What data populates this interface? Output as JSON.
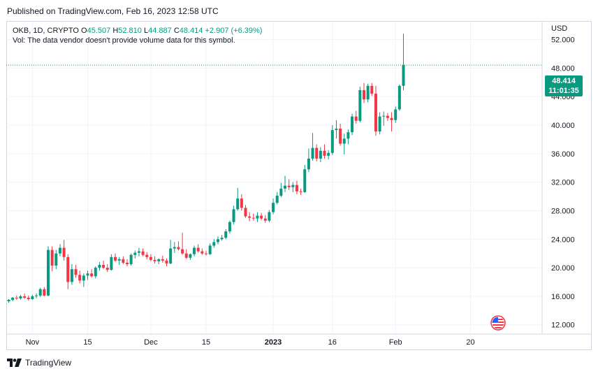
{
  "header": {
    "published": "Published on TradingView.com, Feb 16, 2023 12:58 UTC"
  },
  "legend": {
    "symbol": "OKB, 1D, CRYPTO",
    "o_label": "O",
    "open": "45.507",
    "h_label": "H",
    "high": "52.810",
    "l_label": "L",
    "low": "44.887",
    "c_label": "C",
    "close": "48.414",
    "change": "+2.907 (+6.39%)",
    "vol_text": "Vol: The data vendor doesn't provide volume data for this symbol."
  },
  "axis": {
    "currency": "USD"
  },
  "price_tag": {
    "price": "48.414",
    "countdown": "11:01:35"
  },
  "footer": {
    "brand": "TradingView"
  },
  "colors": {
    "up": "#089981",
    "down": "#f23645",
    "grid": "#f0f3fa",
    "text": "#131722"
  },
  "chart_data": {
    "type": "candlestick",
    "title": "OKB, 1D, CRYPTO",
    "ylabel": "USD",
    "ylim": [
      10.7,
      54.5
    ],
    "y_ticks": [
      "12.000",
      "16.000",
      "20.000",
      "24.000",
      "28.000",
      "32.000",
      "36.000",
      "40.000",
      "44.000",
      "48.000",
      "52.000"
    ],
    "x_ticks": [
      {
        "label": "Nov",
        "day": 6
      },
      {
        "label": "15",
        "day": 20
      },
      {
        "label": "Dec",
        "day": 36
      },
      {
        "label": "15",
        "day": 50
      },
      {
        "label": "2023",
        "day": 67
      },
      {
        "label": "16",
        "day": 82
      },
      {
        "label": "Feb",
        "day": 98
      },
      {
        "label": "20",
        "day": 117
      }
    ],
    "last_price": 48.414,
    "candles": [
      {
        "o": 15.3,
        "h": 15.6,
        "l": 15.1,
        "c": 15.5
      },
      {
        "o": 15.5,
        "h": 15.9,
        "l": 15.3,
        "c": 15.8
      },
      {
        "o": 15.8,
        "h": 16.1,
        "l": 15.5,
        "c": 15.7
      },
      {
        "o": 15.7,
        "h": 16.2,
        "l": 15.5,
        "c": 16.0
      },
      {
        "o": 16.0,
        "h": 16.4,
        "l": 15.6,
        "c": 15.8
      },
      {
        "o": 15.8,
        "h": 16.1,
        "l": 15.4,
        "c": 15.6
      },
      {
        "o": 15.6,
        "h": 16.2,
        "l": 15.5,
        "c": 16.0
      },
      {
        "o": 16.0,
        "h": 16.4,
        "l": 15.7,
        "c": 16.1
      },
      {
        "o": 16.1,
        "h": 17.2,
        "l": 15.9,
        "c": 17.0
      },
      {
        "o": 17.0,
        "h": 17.3,
        "l": 16.0,
        "c": 16.1
      },
      {
        "o": 16.1,
        "h": 23.0,
        "l": 16.0,
        "c": 22.5
      },
      {
        "o": 22.5,
        "h": 23.0,
        "l": 19.5,
        "c": 20.3
      },
      {
        "o": 20.3,
        "h": 22.5,
        "l": 19.8,
        "c": 22.0
      },
      {
        "o": 22.0,
        "h": 23.3,
        "l": 21.6,
        "c": 22.8
      },
      {
        "o": 22.8,
        "h": 23.9,
        "l": 21.0,
        "c": 21.5
      },
      {
        "o": 21.5,
        "h": 21.9,
        "l": 17.0,
        "c": 18.0
      },
      {
        "o": 18.0,
        "h": 20.5,
        "l": 17.6,
        "c": 19.8
      },
      {
        "o": 19.8,
        "h": 20.4,
        "l": 18.6,
        "c": 19.0
      },
      {
        "o": 19.0,
        "h": 19.6,
        "l": 17.8,
        "c": 18.2
      },
      {
        "o": 18.2,
        "h": 19.2,
        "l": 17.3,
        "c": 18.9
      },
      {
        "o": 18.9,
        "h": 19.6,
        "l": 18.3,
        "c": 19.2
      },
      {
        "o": 19.2,
        "h": 19.8,
        "l": 18.6,
        "c": 18.8
      },
      {
        "o": 18.8,
        "h": 20.2,
        "l": 18.5,
        "c": 20.0
      },
      {
        "o": 20.0,
        "h": 20.8,
        "l": 19.6,
        "c": 20.4
      },
      {
        "o": 20.4,
        "h": 21.0,
        "l": 19.8,
        "c": 20.0
      },
      {
        "o": 20.0,
        "h": 20.5,
        "l": 19.4,
        "c": 19.7
      },
      {
        "o": 19.7,
        "h": 21.9,
        "l": 19.6,
        "c": 21.5
      },
      {
        "o": 21.5,
        "h": 22.0,
        "l": 20.8,
        "c": 21.0
      },
      {
        "o": 21.0,
        "h": 21.5,
        "l": 20.4,
        "c": 21.2
      },
      {
        "o": 21.2,
        "h": 21.6,
        "l": 20.5,
        "c": 20.7
      },
      {
        "o": 20.7,
        "h": 21.2,
        "l": 20.2,
        "c": 20.5
      },
      {
        "o": 20.5,
        "h": 22.0,
        "l": 20.3,
        "c": 21.8
      },
      {
        "o": 21.8,
        "h": 22.4,
        "l": 21.3,
        "c": 22.1
      },
      {
        "o": 22.1,
        "h": 22.8,
        "l": 21.6,
        "c": 22.3
      },
      {
        "o": 22.3,
        "h": 22.7,
        "l": 21.6,
        "c": 21.8
      },
      {
        "o": 21.8,
        "h": 22.2,
        "l": 21.2,
        "c": 21.5
      },
      {
        "o": 21.5,
        "h": 21.9,
        "l": 20.9,
        "c": 21.1
      },
      {
        "o": 21.1,
        "h": 21.6,
        "l": 20.6,
        "c": 20.9
      },
      {
        "o": 20.9,
        "h": 21.3,
        "l": 20.5,
        "c": 21.2
      },
      {
        "o": 21.2,
        "h": 21.7,
        "l": 20.7,
        "c": 21.0
      },
      {
        "o": 21.0,
        "h": 21.3,
        "l": 20.2,
        "c": 20.6
      },
      {
        "o": 20.6,
        "h": 23.9,
        "l": 20.5,
        "c": 22.7
      },
      {
        "o": 22.7,
        "h": 23.6,
        "l": 22.1,
        "c": 22.9
      },
      {
        "o": 22.9,
        "h": 23.7,
        "l": 22.4,
        "c": 22.6
      },
      {
        "o": 22.6,
        "h": 24.9,
        "l": 21.8,
        "c": 22.0
      },
      {
        "o": 22.0,
        "h": 22.6,
        "l": 21.2,
        "c": 21.4
      },
      {
        "o": 21.4,
        "h": 22.0,
        "l": 21.1,
        "c": 21.9
      },
      {
        "o": 21.9,
        "h": 23.1,
        "l": 21.6,
        "c": 22.8
      },
      {
        "o": 22.8,
        "h": 23.3,
        "l": 22.1,
        "c": 22.3
      },
      {
        "o": 22.3,
        "h": 22.7,
        "l": 21.8,
        "c": 22.0
      },
      {
        "o": 22.0,
        "h": 22.4,
        "l": 21.7,
        "c": 21.9
      },
      {
        "o": 21.9,
        "h": 23.4,
        "l": 21.8,
        "c": 23.1
      },
      {
        "o": 23.1,
        "h": 24.0,
        "l": 22.8,
        "c": 23.6
      },
      {
        "o": 23.6,
        "h": 24.4,
        "l": 23.3,
        "c": 24.0
      },
      {
        "o": 24.0,
        "h": 24.6,
        "l": 23.8,
        "c": 24.2
      },
      {
        "o": 24.2,
        "h": 25.4,
        "l": 24.0,
        "c": 25.1
      },
      {
        "o": 25.1,
        "h": 26.6,
        "l": 24.8,
        "c": 26.4
      },
      {
        "o": 26.4,
        "h": 28.7,
        "l": 26.1,
        "c": 28.2
      },
      {
        "o": 28.2,
        "h": 31.2,
        "l": 28.0,
        "c": 29.7
      },
      {
        "o": 29.7,
        "h": 30.3,
        "l": 28.0,
        "c": 28.4
      },
      {
        "o": 28.4,
        "h": 28.8,
        "l": 27.0,
        "c": 27.2
      },
      {
        "o": 27.2,
        "h": 27.8,
        "l": 26.5,
        "c": 27.0
      },
      {
        "o": 27.0,
        "h": 27.6,
        "l": 26.6,
        "c": 26.9
      },
      {
        "o": 26.9,
        "h": 27.8,
        "l": 26.4,
        "c": 27.3
      },
      {
        "o": 27.3,
        "h": 27.7,
        "l": 26.7,
        "c": 26.9
      },
      {
        "o": 26.9,
        "h": 27.4,
        "l": 26.3,
        "c": 26.6
      },
      {
        "o": 26.6,
        "h": 28.1,
        "l": 26.4,
        "c": 27.8
      },
      {
        "o": 27.8,
        "h": 29.7,
        "l": 27.5,
        "c": 29.1
      },
      {
        "o": 29.1,
        "h": 30.6,
        "l": 28.9,
        "c": 30.1
      },
      {
        "o": 30.1,
        "h": 31.9,
        "l": 29.9,
        "c": 31.1
      },
      {
        "o": 31.1,
        "h": 32.9,
        "l": 30.6,
        "c": 31.5
      },
      {
        "o": 31.5,
        "h": 32.4,
        "l": 30.9,
        "c": 31.3
      },
      {
        "o": 31.3,
        "h": 32.0,
        "l": 30.6,
        "c": 31.6
      },
      {
        "o": 31.6,
        "h": 32.2,
        "l": 30.3,
        "c": 30.7
      },
      {
        "o": 30.7,
        "h": 31.1,
        "l": 30.2,
        "c": 30.6
      },
      {
        "o": 30.6,
        "h": 34.4,
        "l": 30.5,
        "c": 33.8
      },
      {
        "o": 33.8,
        "h": 36.7,
        "l": 33.4,
        "c": 35.3
      },
      {
        "o": 35.3,
        "h": 38.9,
        "l": 35.0,
        "c": 36.8
      },
      {
        "o": 36.8,
        "h": 37.3,
        "l": 34.9,
        "c": 35.3
      },
      {
        "o": 35.3,
        "h": 36.9,
        "l": 34.8,
        "c": 36.4
      },
      {
        "o": 36.4,
        "h": 37.3,
        "l": 35.3,
        "c": 35.7
      },
      {
        "o": 35.7,
        "h": 36.5,
        "l": 35.2,
        "c": 36.1
      },
      {
        "o": 36.1,
        "h": 40.0,
        "l": 35.8,
        "c": 39.3
      },
      {
        "o": 39.3,
        "h": 40.7,
        "l": 38.1,
        "c": 39.5
      },
      {
        "o": 39.5,
        "h": 40.2,
        "l": 37.1,
        "c": 37.4
      },
      {
        "o": 37.4,
        "h": 38.8,
        "l": 35.9,
        "c": 38.1
      },
      {
        "o": 38.1,
        "h": 39.4,
        "l": 37.3,
        "c": 39.0
      },
      {
        "o": 39.0,
        "h": 41.6,
        "l": 38.6,
        "c": 41.2
      },
      {
        "o": 41.2,
        "h": 42.0,
        "l": 40.2,
        "c": 40.6
      },
      {
        "o": 40.6,
        "h": 45.4,
        "l": 40.4,
        "c": 44.9
      },
      {
        "o": 44.9,
        "h": 45.9,
        "l": 43.1,
        "c": 43.6
      },
      {
        "o": 43.6,
        "h": 45.8,
        "l": 43.2,
        "c": 45.5
      },
      {
        "o": 45.5,
        "h": 45.9,
        "l": 44.1,
        "c": 44.4
      },
      {
        "o": 44.4,
        "h": 45.5,
        "l": 38.5,
        "c": 39.1
      },
      {
        "o": 39.1,
        "h": 41.8,
        "l": 38.7,
        "c": 41.2
      },
      {
        "o": 41.2,
        "h": 41.9,
        "l": 39.9,
        "c": 41.3
      },
      {
        "o": 41.3,
        "h": 41.7,
        "l": 40.6,
        "c": 41.0
      },
      {
        "o": 41.0,
        "h": 41.8,
        "l": 39.1,
        "c": 40.7
      },
      {
        "o": 40.7,
        "h": 42.6,
        "l": 40.3,
        "c": 42.2
      },
      {
        "o": 42.2,
        "h": 45.7,
        "l": 42.0,
        "c": 45.5
      },
      {
        "o": 45.507,
        "h": 52.81,
        "l": 44.887,
        "c": 48.414
      }
    ]
  }
}
